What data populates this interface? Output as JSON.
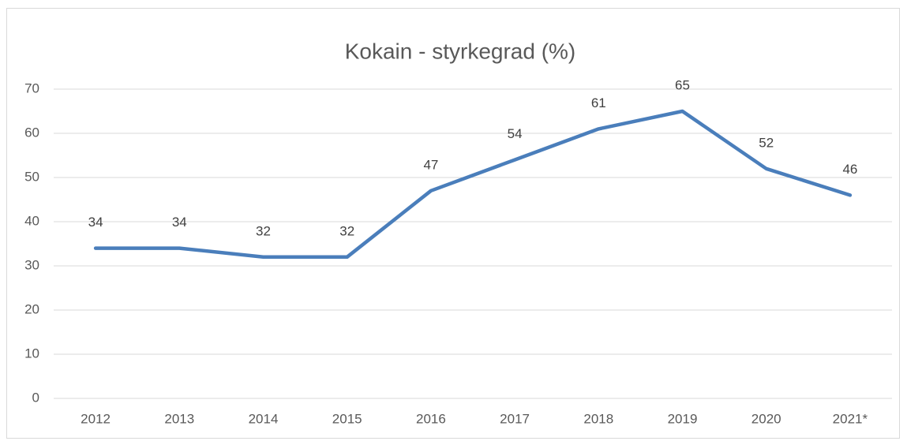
{
  "chart_data": {
    "type": "line",
    "title": "Kokain - styrkegrad (%)",
    "categories": [
      "2012",
      "2013",
      "2014",
      "2015",
      "2016",
      "2017",
      "2018",
      "2019",
      "2020",
      "2021*"
    ],
    "values": [
      34,
      34,
      32,
      32,
      47,
      54,
      61,
      65,
      52,
      46
    ],
    "color": "#4a7ebb",
    "ylim": [
      0,
      70
    ],
    "yticks": [
      0,
      10,
      20,
      30,
      40,
      50,
      60,
      70
    ],
    "grid": true
  }
}
